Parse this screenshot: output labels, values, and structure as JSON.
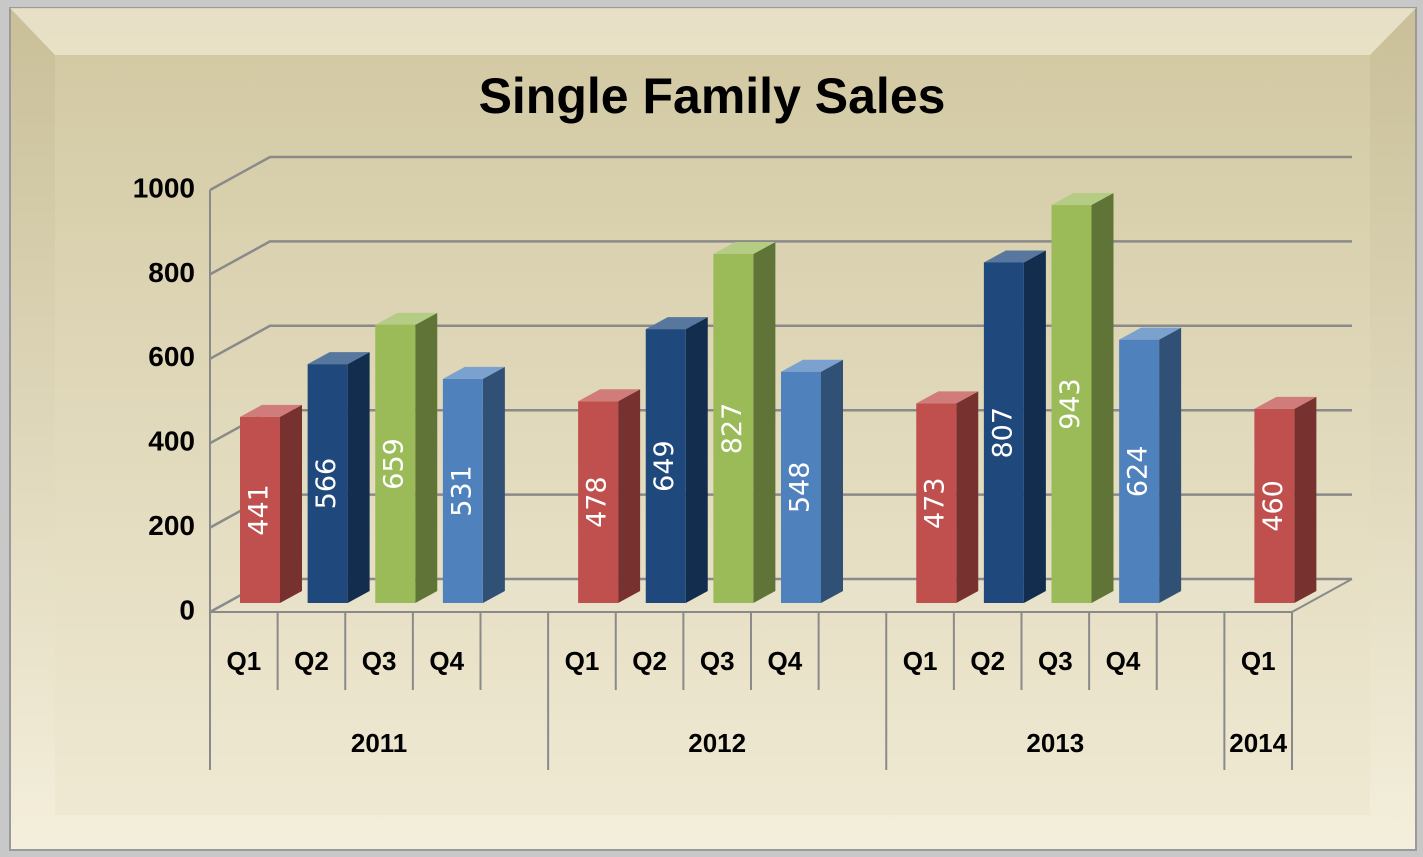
{
  "chart_data": {
    "type": "bar3d",
    "title": "Single Family Sales",
    "groups": [
      {
        "name": "2011",
        "categories": [
          "Q1",
          "Q2",
          "Q3",
          "Q4",
          null
        ],
        "values": [
          441,
          566,
          659,
          531,
          null
        ]
      },
      {
        "name": "2012",
        "categories": [
          "Q1",
          "Q2",
          "Q3",
          "Q4",
          null
        ],
        "values": [
          478,
          649,
          827,
          548,
          null
        ]
      },
      {
        "name": "2013",
        "categories": [
          "Q1",
          "Q2",
          "Q3",
          "Q4",
          null
        ],
        "values": [
          473,
          807,
          943,
          624,
          null
        ]
      },
      {
        "name": "2014",
        "categories": [
          "Q1"
        ],
        "values": [
          460
        ]
      }
    ],
    "colors": [
      "#c0504d",
      "#1f497d",
      "#9bbb59",
      "#4f81bd"
    ],
    "ylim": [
      0,
      1000
    ],
    "yticks": [
      0,
      200,
      400,
      600,
      800,
      1000
    ],
    "grid": true
  }
}
